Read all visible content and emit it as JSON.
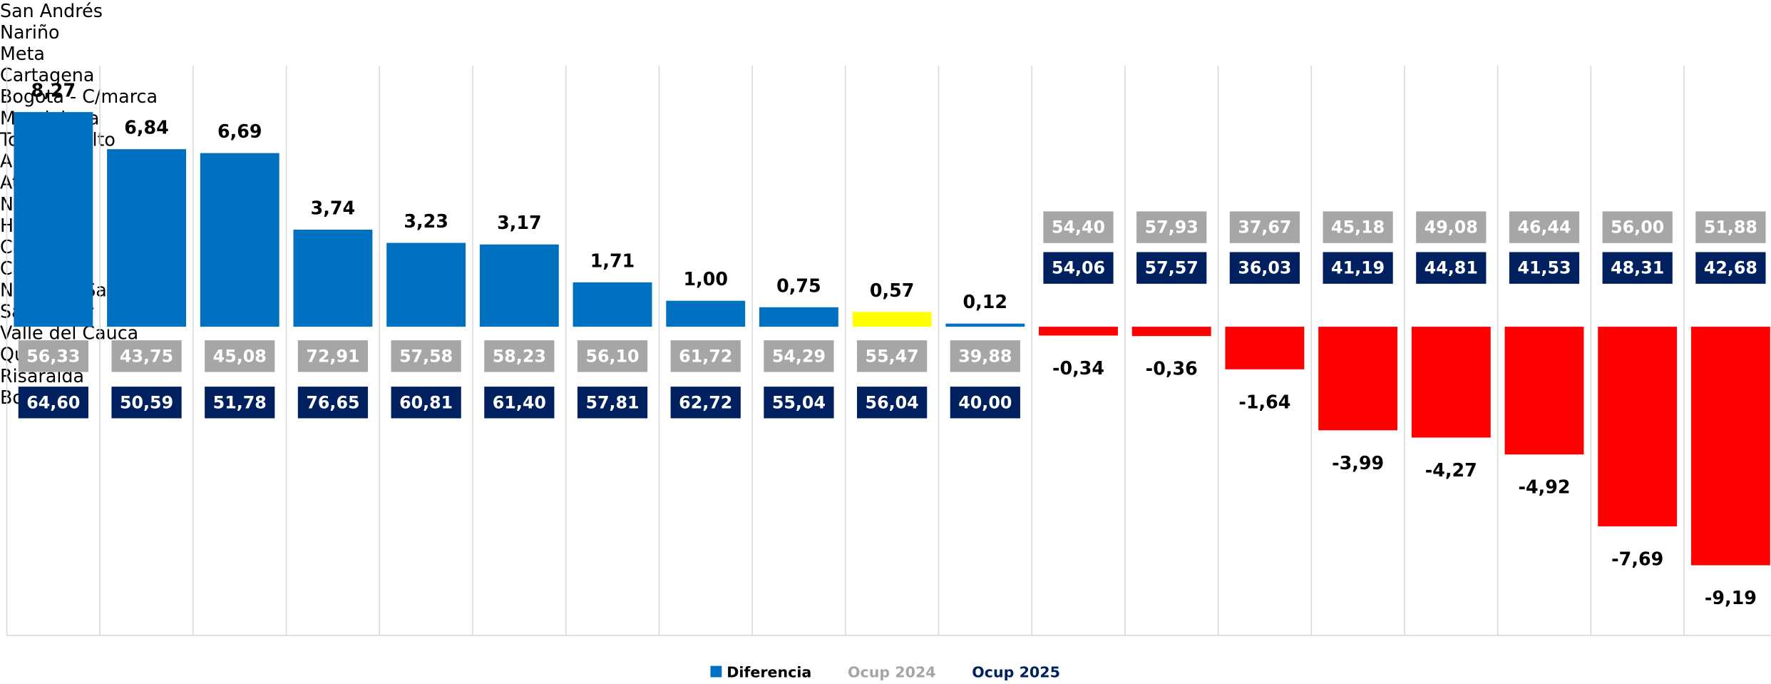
{
  "chart_data": {
    "type": "bar",
    "categories": [
      "San Andrés",
      "Nariño",
      "Meta",
      "Cartagena",
      "Bogotá -\nC/marca",
      "Magdalena",
      "Tolima y\nAlto",
      "Antioquia",
      "Atlántico",
      "Nacional",
      "Huila",
      "Casanare",
      "Caldas",
      "Norte de\nSantander",
      "Santander",
      "Valle del\nCauca",
      "Quindío",
      "Risaralda",
      "Boyacá"
    ],
    "series": [
      {
        "name": "Diferencia",
        "color": "#0070c0",
        "colors": [
          "#0070c0",
          "#0070c0",
          "#0070c0",
          "#0070c0",
          "#0070c0",
          "#0070c0",
          "#0070c0",
          "#0070c0",
          "#0070c0",
          "#ffff00",
          "#0070c0",
          "#ff0000",
          "#ff0000",
          "#ff0000",
          "#ff0000",
          "#ff0000",
          "#ff0000",
          "#ff0000",
          "#ff0000"
        ],
        "values": [
          8.27,
          6.84,
          6.69,
          3.74,
          3.23,
          3.17,
          1.71,
          1.0,
          0.75,
          0.57,
          0.12,
          -0.34,
          -0.36,
          -1.64,
          -3.99,
          -4.27,
          -4.92,
          -7.69,
          -9.19
        ],
        "value_labels": [
          "8,27",
          "6,84",
          "6,69",
          "3,74",
          "3,23",
          "3,17",
          "1,71",
          "1,00",
          "0,75",
          "0,57",
          "0,12",
          "-0,34",
          "-0,36",
          "-1,64",
          "-3,99",
          "-4,27",
          "-4,92",
          "-7,69",
          "-9,19"
        ]
      },
      {
        "name": "Ocup 2024",
        "color": "#a6a6a6",
        "values": [
          56.33,
          43.75,
          45.08,
          72.91,
          57.58,
          58.23,
          56.1,
          61.72,
          54.29,
          55.47,
          39.88,
          54.4,
          57.93,
          37.67,
          45.18,
          49.08,
          46.44,
          56.0,
          51.88
        ],
        "value_labels": [
          "56,33",
          "43,75",
          "45,08",
          "72,91",
          "57,58",
          "58,23",
          "56,10",
          "61,72",
          "54,29",
          "55,47",
          "39,88",
          "54,40",
          "57,93",
          "37,67",
          "45,18",
          "49,08",
          "46,44",
          "56,00",
          "51,88"
        ]
      },
      {
        "name": "Ocup 2025",
        "color": "#002060",
        "values": [
          64.6,
          50.59,
          51.78,
          76.65,
          60.81,
          61.4,
          57.81,
          62.72,
          55.04,
          56.04,
          40.0,
          54.06,
          57.57,
          36.03,
          41.19,
          44.81,
          41.53,
          48.31,
          42.68
        ],
        "value_labels": [
          "64,60",
          "50,59",
          "51,78",
          "76,65",
          "60,81",
          "61,40",
          "57,81",
          "62,72",
          "55,04",
          "56,04",
          "40,00",
          "54,06",
          "57,57",
          "36,03",
          "41,19",
          "44,81",
          "41,53",
          "48,31",
          "42,68"
        ]
      }
    ]
  }
}
